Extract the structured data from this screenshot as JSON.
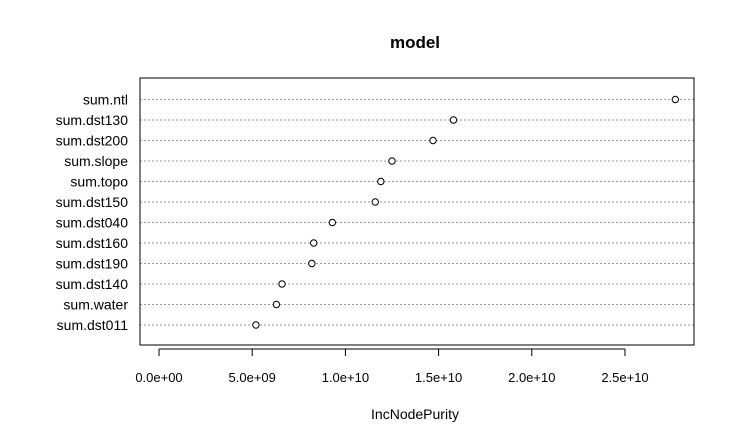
{
  "chart_data": {
    "type": "scatter",
    "title": "model",
    "xlabel": "IncNodePurity",
    "ylabel": "",
    "xlim": [
      0,
      28500000000
    ],
    "grid": true,
    "x_ticks": [
      {
        "value": 0,
        "label": "0.0e+00"
      },
      {
        "value": 5000000000,
        "label": "5.0e+09"
      },
      {
        "value": 10000000000,
        "label": "1.0e+10"
      },
      {
        "value": 15000000000,
        "label": "1.5e+10"
      },
      {
        "value": 20000000000,
        "label": "2.0e+10"
      },
      {
        "value": 25000000000,
        "label": "2.5e+10"
      }
    ],
    "categories": [
      "sum.ntl",
      "sum.dst130",
      "sum.dst200",
      "sum.slope",
      "sum.topo",
      "sum.dst150",
      "sum.dst040",
      "sum.dst160",
      "sum.dst190",
      "sum.dst140",
      "sum.water",
      "sum.dst011"
    ],
    "values": [
      27700000000,
      15800000000,
      14700000000,
      12500000000,
      11900000000,
      11600000000,
      9300000000,
      8300000000,
      8200000000,
      6600000000,
      6300000000,
      5200000000
    ]
  }
}
